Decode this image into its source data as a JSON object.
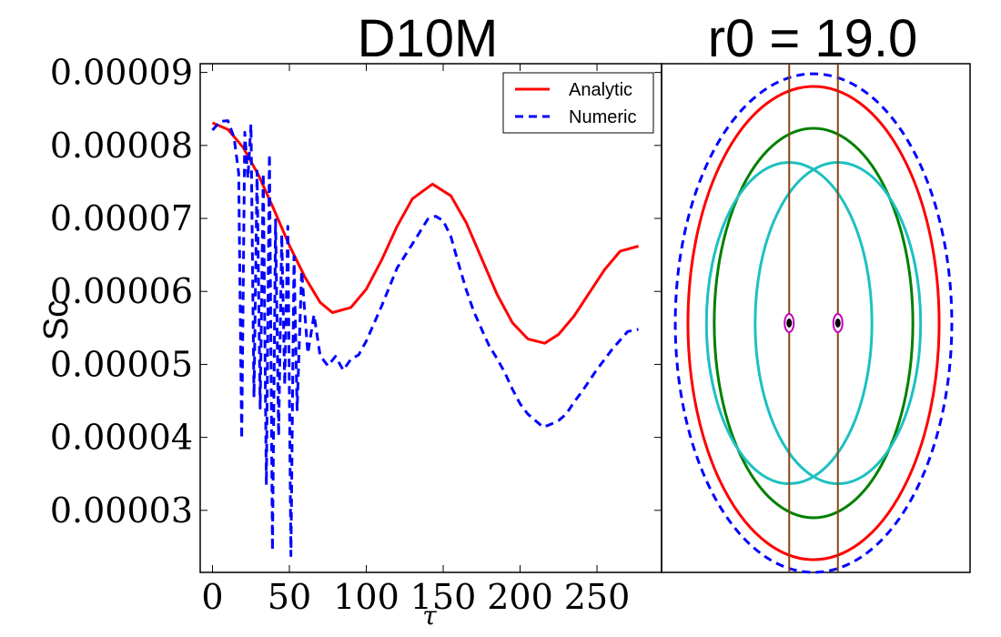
{
  "chart_data": [
    {
      "type": "line",
      "title": "D10M",
      "xlabel": "τ",
      "ylabel": "Sc",
      "xlim": [
        -8,
        292
      ],
      "ylim": [
        2.15e-05,
        9.12e-05
      ],
      "xticks": [
        "0",
        "50",
        "100",
        "150",
        "200",
        "250"
      ],
      "xtick_values": [
        0,
        50,
        100,
        150,
        200,
        250
      ],
      "yticks": [
        "0.00003",
        "0.00004",
        "0.00005",
        "0.00006",
        "0.00007",
        "0.00008",
        "0.00009"
      ],
      "ytick_values": [
        3e-05,
        4e-05,
        5e-05,
        6e-05,
        7e-05,
        8e-05,
        9e-05
      ],
      "legend_position": "top-right",
      "series": [
        {
          "name": "Analytic",
          "color": "#ff0000",
          "style": "solid",
          "x": [
            0,
            10,
            20,
            30,
            40,
            50,
            60,
            70,
            78,
            90,
            100,
            110,
            120,
            130,
            143,
            155,
            165,
            175,
            185,
            195,
            205,
            216,
            225,
            235,
            245,
            255,
            265,
            277
          ],
          "y": [
            8.31e-05,
            8.22e-05,
            7.97e-05,
            7.59e-05,
            7.12e-05,
            6.63e-05,
            6.2e-05,
            5.85e-05,
            5.71e-05,
            5.78e-05,
            6.03e-05,
            6.43e-05,
            6.89e-05,
            7.27e-05,
            7.47e-05,
            7.31e-05,
            6.94e-05,
            6.45e-05,
            5.96e-05,
            5.57e-05,
            5.35e-05,
            5.29e-05,
            5.41e-05,
            5.66e-05,
            5.98e-05,
            6.3e-05,
            6.55e-05,
            6.62e-05
          ]
        },
        {
          "name": "Numeric",
          "color": "#0000ff",
          "style": "dashed",
          "x": [
            0,
            5,
            10,
            14,
            17,
            19,
            21,
            23,
            25,
            27,
            29,
            31,
            33,
            35,
            37,
            39,
            41,
            43,
            45,
            47,
            49,
            51,
            53,
            55,
            58,
            62,
            66,
            70,
            75,
            80,
            85,
            90,
            95,
            100,
            110,
            120,
            130,
            140,
            145,
            150,
            155,
            160,
            165,
            170,
            175,
            180,
            185,
            190,
            195,
            200,
            205,
            210,
            215,
            220,
            225,
            230,
            235,
            240,
            250,
            260,
            270,
            277
          ],
          "y": [
            8.21e-05,
            8.33e-05,
            8.34e-05,
            8.11e-05,
            7.62e-05,
            3.98e-05,
            8.18e-05,
            7.55e-05,
            8.29e-05,
            4.55e-05,
            7.65e-05,
            4.4e-05,
            7.62e-05,
            3.35e-05,
            7.88e-05,
            2.45e-05,
            6.98e-05,
            4.02e-05,
            6.78e-05,
            4.72e-05,
            6.89e-05,
            2.38e-05,
            6.48e-05,
            4.38e-05,
            6.28e-05,
            5.15e-05,
            5.68e-05,
            5.12e-05,
            4.98e-05,
            5.11e-05,
            4.92e-05,
            5.07e-05,
            5.13e-05,
            5.32e-05,
            5.8e-05,
            6.32e-05,
            6.65e-05,
            6.99e-05,
            7.03e-05,
            6.97e-05,
            6.75e-05,
            6.38e-05,
            6.02e-05,
            5.72e-05,
            5.48e-05,
            5.25e-05,
            5.08e-05,
            4.89e-05,
            4.66e-05,
            4.46e-05,
            4.32e-05,
            4.23e-05,
            4.14e-05,
            4.18e-05,
            4.23e-05,
            4.32e-05,
            4.48e-05,
            4.62e-05,
            4.93e-05,
            5.21e-05,
            5.45e-05,
            5.48e-05
          ]
        }
      ]
    },
    {
      "type": "orbit-diagram",
      "title": "r0 = 19.0",
      "ellipses": [
        {
          "name": "Analytic orbit",
          "color": "#ff0000",
          "style": "solid",
          "cx": 0,
          "cy": 0,
          "rx": 12.9,
          "ry": 24.3
        },
        {
          "name": "Numeric orbit",
          "color": "#0000ff",
          "style": "dashed",
          "cx": 0,
          "cy": 0,
          "rx": 14.2,
          "ry": 25.6
        },
        {
          "name": "Green orbit",
          "color": "#008000",
          "style": "solid",
          "cx": 0,
          "cy": 0,
          "rx": 10.2,
          "ry": 20.0
        },
        {
          "name": "Cyan orbit left",
          "color": "#1ec0c0",
          "style": "solid",
          "cx": -2.5,
          "cy": 0,
          "rx": 8.5,
          "ry": 16.5
        },
        {
          "name": "Cyan orbit right",
          "color": "#1ec0c0",
          "style": "solid",
          "cx": 2.5,
          "cy": 0,
          "rx": 8.5,
          "ry": 16.5
        }
      ],
      "vertical_lines": {
        "color": "#8b4513",
        "x": [
          -2.5,
          2.5
        ]
      },
      "masses": {
        "color": "#c000c0",
        "x": [
          -2.5,
          2.5
        ],
        "y": 0
      }
    }
  ]
}
